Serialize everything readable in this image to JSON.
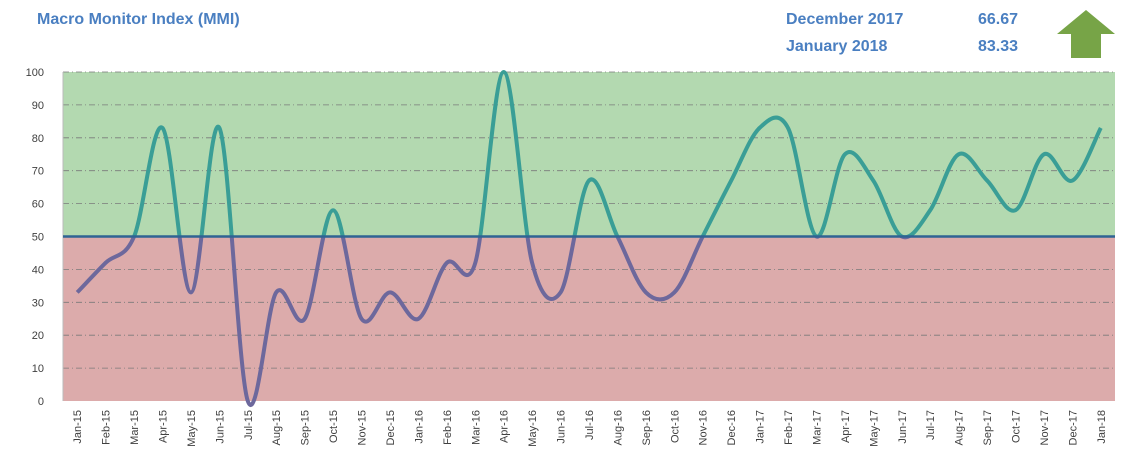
{
  "header": {
    "title": "Macro Monitor Index (MMI)",
    "readings": [
      {
        "label": "December 2017",
        "value": "66.67"
      },
      {
        "label": "January 2018",
        "value": "83.33"
      }
    ],
    "trend_icon": "up-arrow-icon",
    "trend_color": "#77a447"
  },
  "chart_data": {
    "type": "line",
    "title": "Macro Monitor Index (MMI)",
    "xlabel": "",
    "ylabel": "",
    "ylim": [
      0,
      100
    ],
    "yticks": [
      0,
      10,
      20,
      30,
      40,
      50,
      60,
      70,
      80,
      90,
      100
    ],
    "threshold": 50,
    "bands": {
      "above_color": "#b3d9b0",
      "below_color": "#dcabab"
    },
    "line_colors": {
      "above": "#3a9e96",
      "below": "#6d689c",
      "threshold": "#2f6493"
    },
    "categories": [
      "Jan-15",
      "Feb-15",
      "Mar-15",
      "Apr-15",
      "May-15",
      "Jun-15",
      "Jul-15",
      "Aug-15",
      "Sep-15",
      "Oct-15",
      "Nov-15",
      "Dec-15",
      "Jan-16",
      "Feb-16",
      "Mar-16",
      "Apr-16",
      "May-16",
      "Jun-16",
      "Jul-16",
      "Aug-16",
      "Sep-16",
      "Oct-16",
      "Nov-16",
      "Dec-16",
      "Jan-17",
      "Feb-17",
      "Mar-17",
      "Apr-17",
      "May-17",
      "Jun-17",
      "Jul-17",
      "Aug-17",
      "Sep-17",
      "Oct-17",
      "Nov-17",
      "Dec-17",
      "Jan-18"
    ],
    "values": [
      33,
      42,
      50,
      83,
      33,
      83,
      0,
      33,
      25,
      58,
      25,
      33,
      25,
      42,
      42,
      100,
      42,
      33,
      67,
      50,
      33,
      33,
      50,
      67,
      83,
      83,
      50,
      75,
      67,
      50,
      58,
      75,
      67,
      58,
      75,
      67,
      83
    ]
  }
}
